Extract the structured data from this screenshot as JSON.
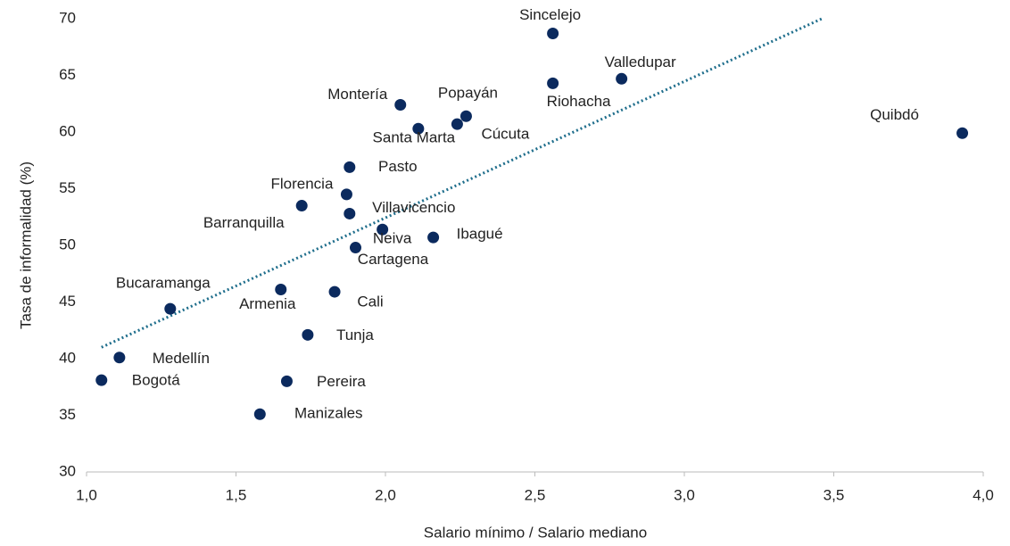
{
  "chart_data": {
    "type": "scatter",
    "x_label": "Salario mínimo / Salario mediano",
    "y_label": "Tasa de informalidad (%)",
    "point_labels": [
      "Sincelejo",
      "Valledupar",
      "Riohacha",
      "Quibdó",
      "Montería",
      "Popayán",
      "Cúcuta",
      "Santa Marta",
      "Pasto",
      "Florencia",
      "Barranquilla",
      "Villavicencio",
      "Neiva",
      "Ibagué",
      "Cartagena",
      "Armenia",
      "Cali",
      "Bucaramanga",
      "Tunja",
      "Medellín",
      "Bogotá",
      "Pereira",
      "Manizales"
    ],
    "x": [
      2.56,
      2.79,
      2.56,
      3.93,
      2.05,
      2.27,
      2.24,
      2.11,
      1.88,
      1.87,
      1.72,
      1.88,
      1.99,
      2.16,
      1.9,
      1.65,
      1.83,
      1.28,
      1.74,
      1.11,
      1.05,
      1.67,
      1.58
    ],
    "values": [
      68.7,
      64.7,
      64.3,
      59.9,
      62.4,
      61.4,
      60.7,
      60.3,
      56.9,
      54.5,
      53.5,
      52.8,
      51.4,
      50.7,
      49.8,
      46.1,
      45.9,
      44.4,
      42.1,
      40.1,
      38.1,
      38.0,
      35.1
    ],
    "color": "#0b2a5e",
    "trendline": {
      "x": [
        1.05,
        3.46
      ],
      "y": [
        41.0,
        70.0
      ],
      "color": "#1f6e8c"
    },
    "xlim": [
      1.0,
      4.0
    ],
    "xticks": [
      {
        "value": 1.0,
        "label": "1,0"
      },
      {
        "value": 1.5,
        "label": "1,5"
      },
      {
        "value": 2.0,
        "label": "2,0"
      },
      {
        "value": 2.5,
        "label": "2,5"
      },
      {
        "value": 3.0,
        "label": "3,0"
      },
      {
        "value": 3.5,
        "label": "3,5"
      },
      {
        "value": 4.0,
        "label": "4,0"
      }
    ],
    "ylim": [
      30,
      70
    ],
    "yticks": [
      30,
      35,
      40,
      45,
      50,
      55,
      60,
      65,
      70
    ],
    "grid": false
  }
}
